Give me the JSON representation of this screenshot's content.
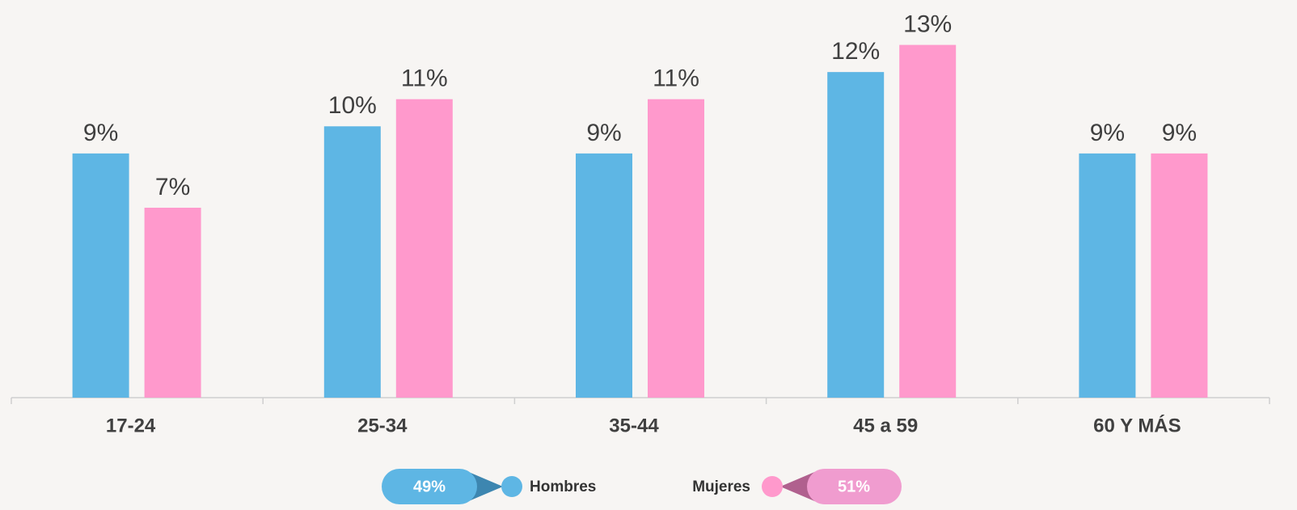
{
  "chart_data": {
    "type": "bar",
    "categories": [
      "17-24",
      "25-34",
      "35-44",
      "45 a 59",
      "60 Y MÁS"
    ],
    "series": [
      {
        "name": "Hombres",
        "color": "#5eb6e4",
        "values": [
          9,
          10,
          9,
          12,
          9
        ],
        "value_labels": [
          "9%",
          "10%",
          "9%",
          "12%",
          "9%"
        ],
        "total": 49,
        "total_label": "49%"
      },
      {
        "name": "Mujeres",
        "color": "#ff99cc",
        "values": [
          7,
          11,
          11,
          13,
          9
        ],
        "value_labels": [
          "7%",
          "11%",
          "11%",
          "13%",
          "9%"
        ],
        "total": 51,
        "total_label": "51%"
      }
    ],
    "ylim": [
      0,
      14
    ]
  }
}
